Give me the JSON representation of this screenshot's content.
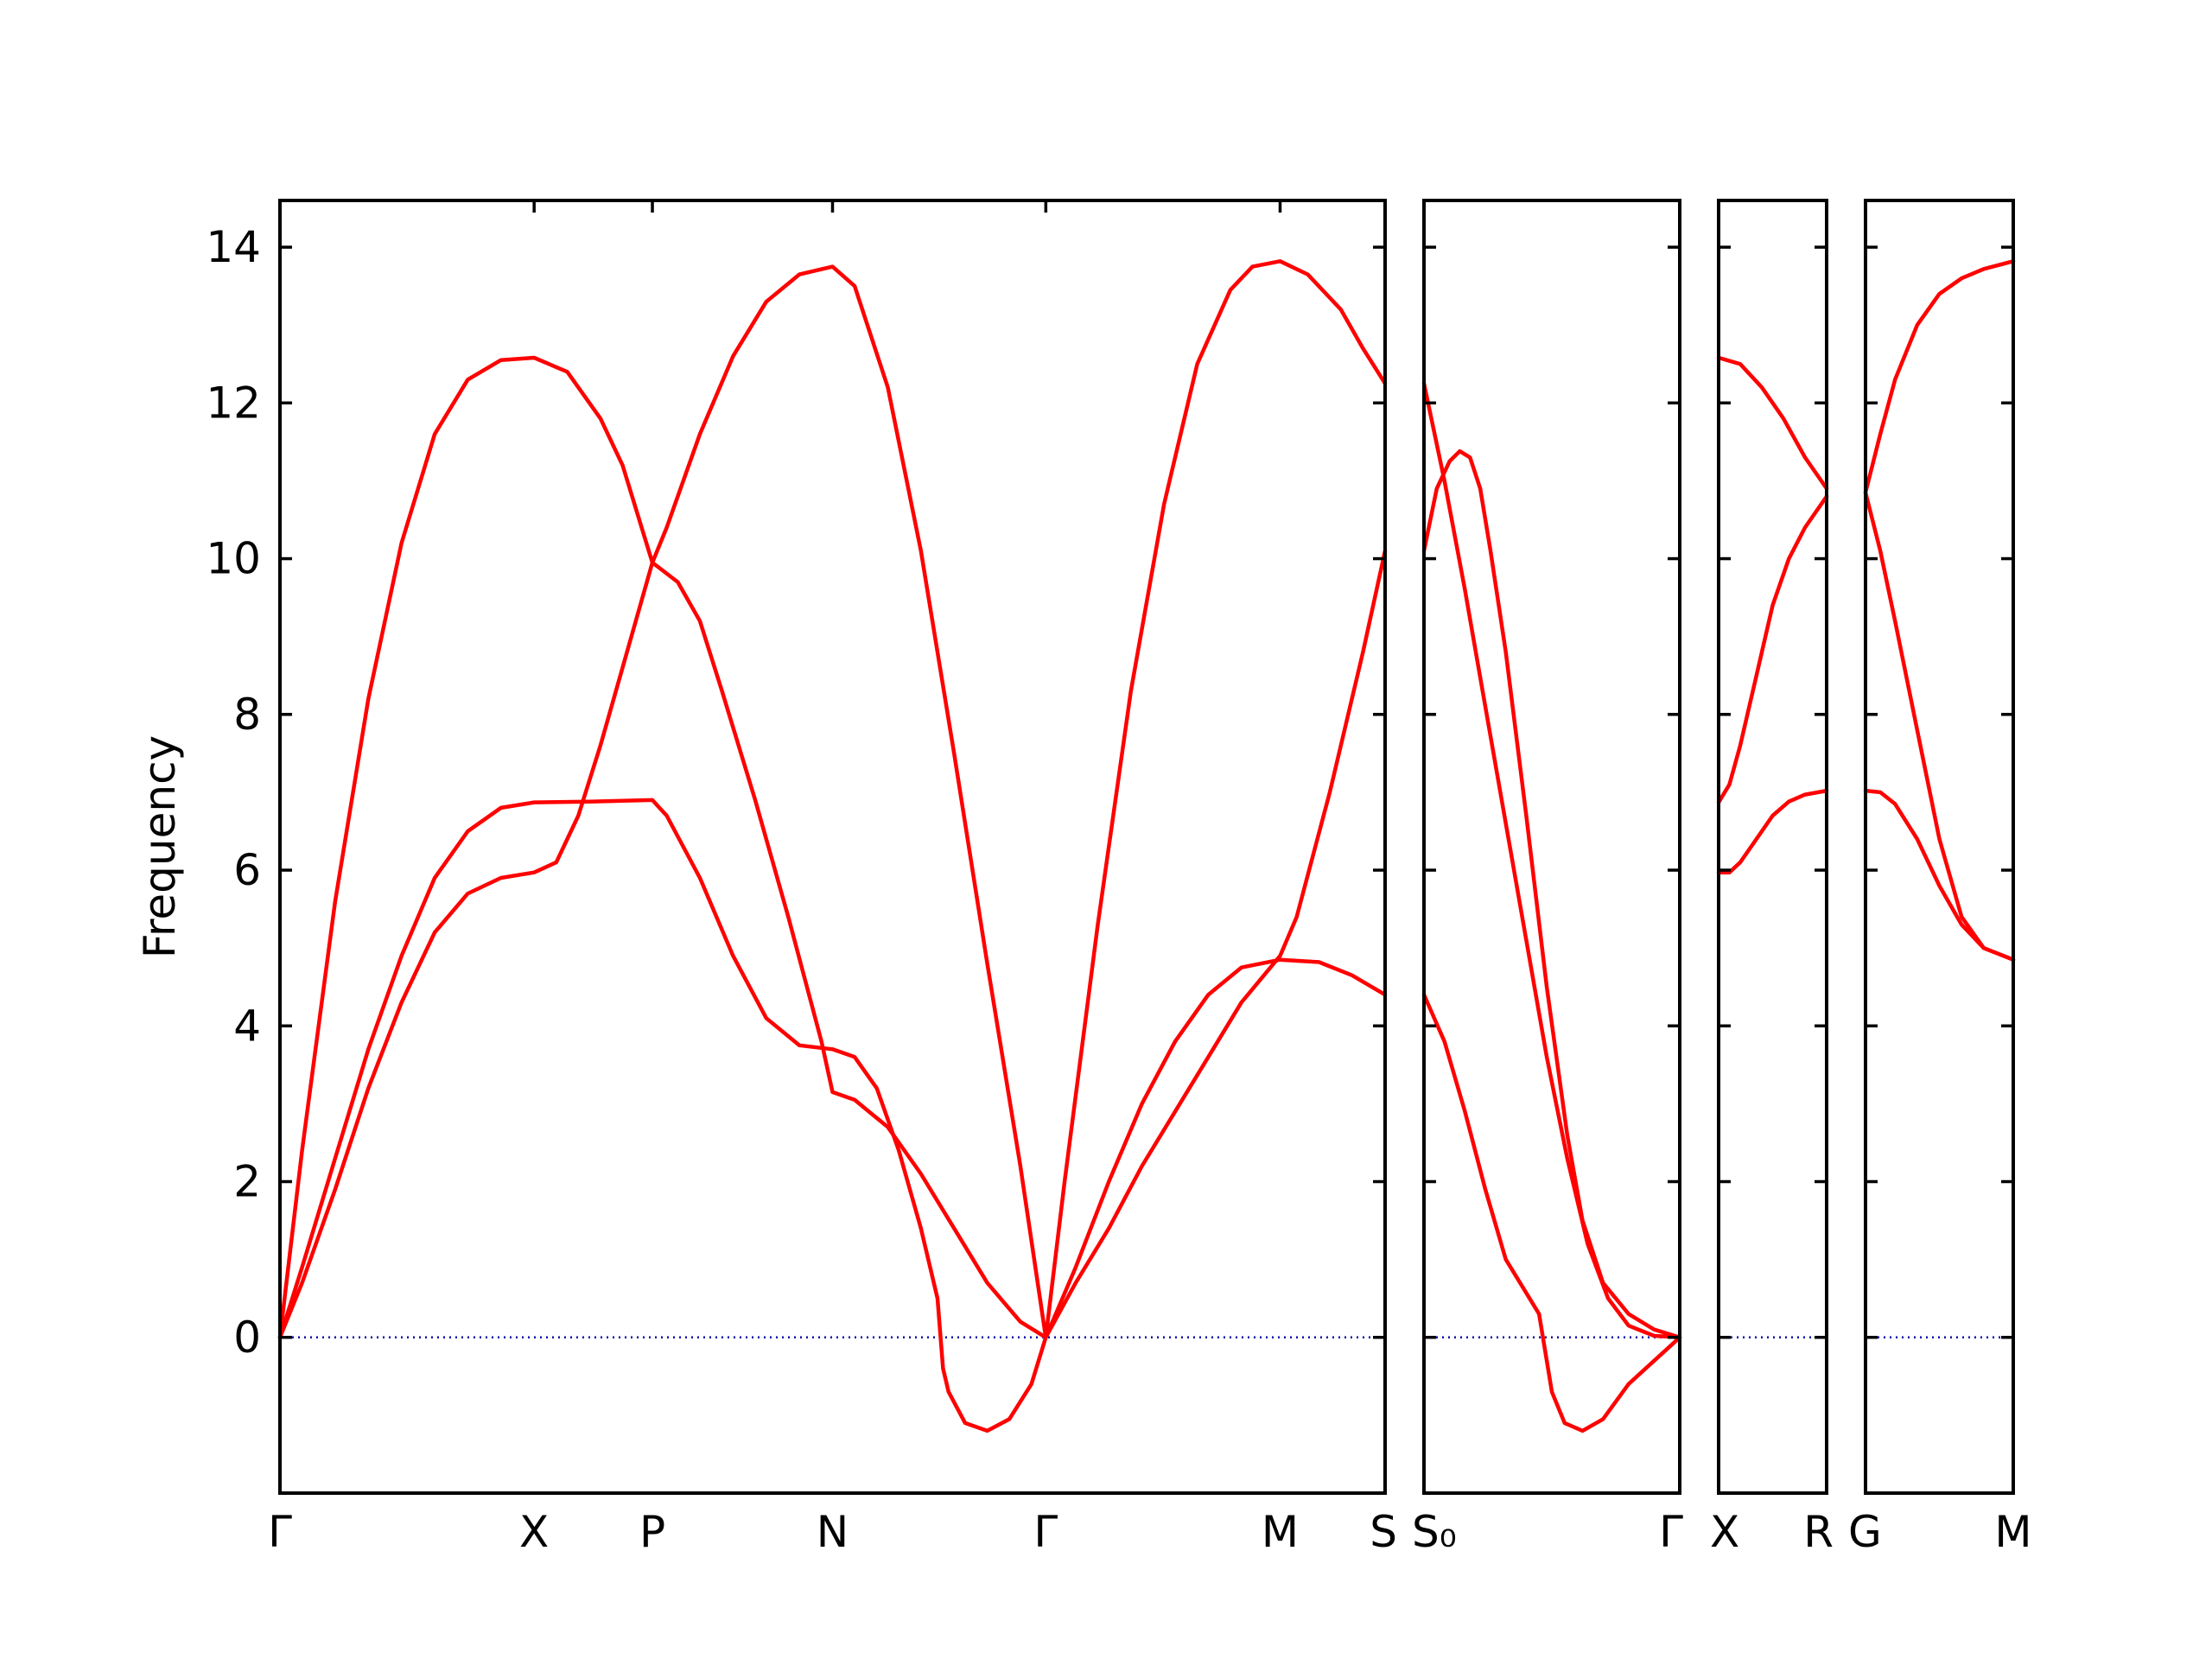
{
  "chart_data": {
    "type": "line",
    "title": "",
    "xlabel": "",
    "ylabel": "Frequency",
    "ylim": [
      -2,
      14.6
    ],
    "yticks": [
      "0",
      "2",
      "4",
      "6",
      "8",
      "10",
      "12",
      "14"
    ],
    "grid": false,
    "colors": {
      "band": "#ff0000",
      "zero": "#0000aa",
      "frame": "#000000"
    },
    "segments": [
      {
        "labels": [
          {
            "x": 0,
            "text": "Γ"
          },
          {
            "x": 0.23,
            "text": "X"
          },
          {
            "x": 0.337,
            "text": "P"
          },
          {
            "x": 0.5,
            "text": "N"
          },
          {
            "x": 0.693,
            "text": "Γ"
          },
          {
            "x": 0.905,
            "text": "M"
          },
          {
            "x": 1.0,
            "text": "S"
          }
        ],
        "ticks": [
          0.23,
          0.337,
          0.5,
          0.693,
          0.905
        ],
        "bands": [
          [
            [
              0,
              0
            ],
            [
              0.02,
              2.4
            ],
            [
              0.05,
              5.6
            ],
            [
              0.08,
              8.2
            ],
            [
              0.11,
              10.2
            ],
            [
              0.14,
              11.6
            ],
            [
              0.17,
              12.3
            ],
            [
              0.2,
              12.55
            ],
            [
              0.23,
              12.58
            ],
            [
              0.26,
              12.4
            ],
            [
              0.29,
              11.8
            ],
            [
              0.31,
              11.2
            ],
            [
              0.337,
              9.95
            ],
            [
              0.35,
              10.4
            ],
            [
              0.38,
              11.6
            ],
            [
              0.41,
              12.6
            ],
            [
              0.44,
              13.3
            ],
            [
              0.47,
              13.65
            ],
            [
              0.5,
              13.75
            ],
            [
              0.52,
              13.5
            ],
            [
              0.55,
              12.2
            ],
            [
              0.58,
              10.1
            ],
            [
              0.61,
              7.5
            ],
            [
              0.64,
              4.8
            ],
            [
              0.67,
              2.2
            ],
            [
              0.693,
              0
            ],
            [
              0.71,
              2.0
            ],
            [
              0.74,
              5.3
            ],
            [
              0.77,
              8.3
            ],
            [
              0.8,
              10.7
            ],
            [
              0.83,
              12.5
            ],
            [
              0.86,
              13.45
            ],
            [
              0.88,
              13.75
            ],
            [
              0.905,
              13.82
            ],
            [
              0.93,
              13.65
            ],
            [
              0.96,
              13.2
            ],
            [
              0.98,
              12.7
            ],
            [
              1.0,
              12.25
            ]
          ],
          [
            [
              0,
              0
            ],
            [
              0.02,
              0.7
            ],
            [
              0.05,
              1.9
            ],
            [
              0.08,
              3.2
            ],
            [
              0.11,
              4.3
            ],
            [
              0.14,
              5.2
            ],
            [
              0.17,
              5.7
            ],
            [
              0.2,
              5.9
            ],
            [
              0.23,
              5.97
            ],
            [
              0.25,
              6.1
            ],
            [
              0.27,
              6.7
            ],
            [
              0.29,
              7.6
            ],
            [
              0.31,
              8.6
            ],
            [
              0.337,
              9.95
            ],
            [
              0.36,
              9.7
            ],
            [
              0.38,
              9.2
            ],
            [
              0.4,
              8.3
            ],
            [
              0.43,
              6.9
            ],
            [
              0.46,
              5.4
            ],
            [
              0.49,
              3.8
            ],
            [
              0.5,
              3.15
            ],
            [
              0.52,
              3.05
            ],
            [
              0.55,
              2.7
            ],
            [
              0.58,
              2.1
            ],
            [
              0.61,
              1.4
            ],
            [
              0.64,
              0.7
            ],
            [
              0.67,
              0.2
            ],
            [
              0.693,
              0
            ],
            [
              0.72,
              0.9
            ],
            [
              0.75,
              2.0
            ],
            [
              0.78,
              3.0
            ],
            [
              0.81,
              3.8
            ],
            [
              0.84,
              4.4
            ],
            [
              0.87,
              4.75
            ],
            [
              0.905,
              4.85
            ],
            [
              0.94,
              4.82
            ],
            [
              0.97,
              4.65
            ],
            [
              1.0,
              4.4
            ]
          ],
          [
            [
              0,
              0
            ],
            [
              0.02,
              0.9
            ],
            [
              0.05,
              2.3
            ],
            [
              0.08,
              3.7
            ],
            [
              0.11,
              4.9
            ],
            [
              0.14,
              5.9
            ],
            [
              0.17,
              6.5
            ],
            [
              0.2,
              6.8
            ],
            [
              0.23,
              6.87
            ],
            [
              0.28,
              6.88
            ],
            [
              0.337,
              6.9
            ],
            [
              0.35,
              6.7
            ],
            [
              0.38,
              5.9
            ],
            [
              0.41,
              4.9
            ],
            [
              0.44,
              4.1
            ],
            [
              0.47,
              3.75
            ],
            [
              0.5,
              3.7
            ],
            [
              0.52,
              3.6
            ],
            [
              0.54,
              3.2
            ],
            [
              0.56,
              2.4
            ],
            [
              0.58,
              1.4
            ],
            [
              0.595,
              0.5
            ],
            [
              0.6,
              -0.4
            ],
            [
              0.605,
              -0.7
            ],
            [
              0.62,
              -1.1
            ],
            [
              0.64,
              -1.2
            ],
            [
              0.66,
              -1.05
            ],
            [
              0.68,
              -0.6
            ],
            [
              0.693,
              0
            ],
            [
              0.72,
              0.7
            ],
            [
              0.75,
              1.4
            ],
            [
              0.78,
              2.2
            ],
            [
              0.81,
              2.9
            ],
            [
              0.84,
              3.6
            ],
            [
              0.87,
              4.3
            ],
            [
              0.905,
              4.9
            ],
            [
              0.92,
              5.4
            ],
            [
              0.95,
              7.0
            ],
            [
              0.98,
              8.8
            ],
            [
              1.0,
              10.1
            ]
          ]
        ]
      },
      {
        "labels": [
          {
            "x": 0,
            "text": "S₀"
          },
          {
            "x": 1.0,
            "text": "Γ"
          }
        ],
        "ticks": [],
        "bands": [
          [
            [
              0,
              12.25
            ],
            [
              0.08,
              11.0
            ],
            [
              0.16,
              9.6
            ],
            [
              0.24,
              8.1
            ],
            [
              0.32,
              6.6
            ],
            [
              0.4,
              5.1
            ],
            [
              0.48,
              3.6
            ],
            [
              0.56,
              2.3
            ],
            [
              0.64,
              1.2
            ],
            [
              0.72,
              0.5
            ],
            [
              0.8,
              0.15
            ],
            [
              0.9,
              0.02
            ],
            [
              1.0,
              0
            ]
          ],
          [
            [
              0,
              10.1
            ],
            [
              0.05,
              10.9
            ],
            [
              0.1,
              11.25
            ],
            [
              0.14,
              11.38
            ],
            [
              0.18,
              11.3
            ],
            [
              0.22,
              10.9
            ],
            [
              0.26,
              10.1
            ],
            [
              0.32,
              8.8
            ],
            [
              0.4,
              6.7
            ],
            [
              0.48,
              4.5
            ],
            [
              0.56,
              2.6
            ],
            [
              0.62,
              1.5
            ],
            [
              0.7,
              0.7
            ],
            [
              0.8,
              0.3
            ],
            [
              0.9,
              0.1
            ],
            [
              1.0,
              0
            ]
          ],
          [
            [
              0,
              4.4
            ],
            [
              0.08,
              3.8
            ],
            [
              0.16,
              2.9
            ],
            [
              0.24,
              1.9
            ],
            [
              0.32,
              1.0
            ],
            [
              0.45,
              0.3
            ],
            [
              0.48,
              -0.3
            ],
            [
              0.5,
              -0.7
            ],
            [
              0.55,
              -1.1
            ],
            [
              0.62,
              -1.2
            ],
            [
              0.7,
              -1.05
            ],
            [
              0.8,
              -0.6
            ],
            [
              0.9,
              -0.3
            ],
            [
              1.0,
              0
            ]
          ]
        ]
      },
      {
        "labels": [
          {
            "x": 0,
            "text": "X"
          },
          {
            "x": 1.0,
            "text": "R"
          }
        ],
        "ticks": [],
        "bands": [
          [
            [
              0,
              12.58
            ],
            [
              0.2,
              12.5
            ],
            [
              0.4,
              12.2
            ],
            [
              0.6,
              11.8
            ],
            [
              0.8,
              11.3
            ],
            [
              1.0,
              10.9
            ]
          ],
          [
            [
              0,
              6.87
            ],
            [
              0.1,
              7.1
            ],
            [
              0.2,
              7.6
            ],
            [
              0.35,
              8.5
            ],
            [
              0.5,
              9.4
            ],
            [
              0.65,
              10.0
            ],
            [
              0.8,
              10.4
            ],
            [
              1.0,
              10.8
            ]
          ],
          [
            [
              0,
              5.97
            ],
            [
              0.1,
              5.97
            ],
            [
              0.2,
              6.1
            ],
            [
              0.35,
              6.4
            ],
            [
              0.5,
              6.7
            ],
            [
              0.65,
              6.88
            ],
            [
              0.8,
              6.97
            ],
            [
              1.0,
              7.02
            ]
          ]
        ]
      },
      {
        "labels": [
          {
            "x": 0,
            "text": "G"
          },
          {
            "x": 1.0,
            "text": "M"
          }
        ],
        "ticks": [],
        "bands": [
          [
            [
              0,
              10.85
            ],
            [
              0.1,
              11.6
            ],
            [
              0.2,
              12.3
            ],
            [
              0.35,
              13.0
            ],
            [
              0.5,
              13.4
            ],
            [
              0.65,
              13.6
            ],
            [
              0.8,
              13.72
            ],
            [
              1.0,
              13.82
            ]
          ],
          [
            [
              0,
              10.85
            ],
            [
              0.1,
              10.1
            ],
            [
              0.2,
              9.2
            ],
            [
              0.35,
              7.8
            ],
            [
              0.5,
              6.4
            ],
            [
              0.65,
              5.4
            ],
            [
              0.8,
              5.0
            ],
            [
              1.0,
              4.85
            ]
          ],
          [
            [
              0,
              7.02
            ],
            [
              0.1,
              7.0
            ],
            [
              0.2,
              6.85
            ],
            [
              0.35,
              6.4
            ],
            [
              0.5,
              5.8
            ],
            [
              0.65,
              5.3
            ],
            [
              0.8,
              5.0
            ],
            [
              1.0,
              4.85
            ]
          ]
        ]
      }
    ]
  }
}
